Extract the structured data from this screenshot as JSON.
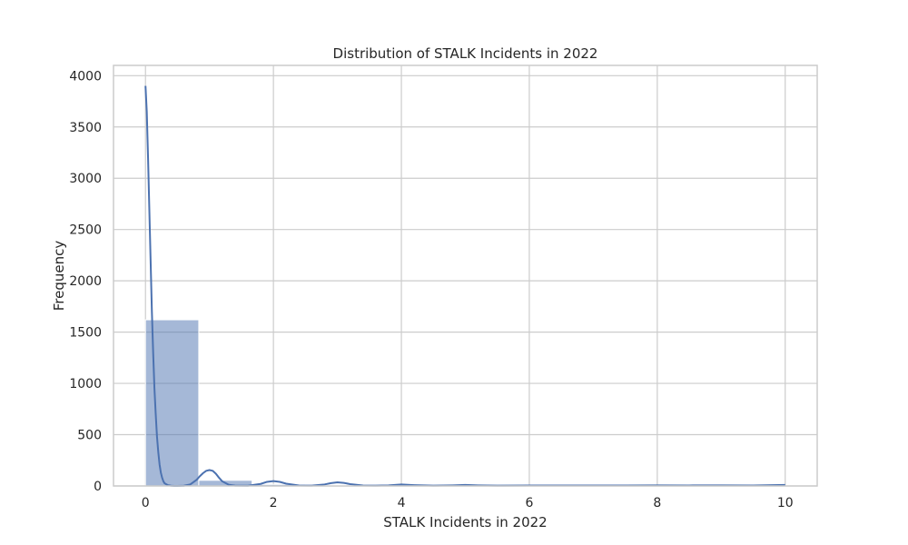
{
  "chart_data": {
    "type": "bar",
    "title": "Distribution of STALK Incidents in 2022",
    "xlabel": "STALK Incidents in 2022",
    "ylabel": "Frequency",
    "xlim": [
      -0.5,
      10.5
    ],
    "ylim": [
      0,
      4100
    ],
    "xticks": [
      0,
      2,
      4,
      6,
      8,
      10
    ],
    "yticks": [
      0,
      500,
      1000,
      1500,
      2000,
      2500,
      3000,
      3500,
      4000
    ],
    "grid": true,
    "bins": [
      {
        "start": 0.0,
        "end": 0.833,
        "value": 1620
      },
      {
        "start": 0.833,
        "end": 1.667,
        "value": 55
      },
      {
        "start": 1.667,
        "end": 2.5,
        "value": 15
      },
      {
        "start": 2.5,
        "end": 3.333,
        "value": 8
      },
      {
        "start": 3.333,
        "end": 4.167,
        "value": 5
      },
      {
        "start": 4.167,
        "end": 5.0,
        "value": 3
      },
      {
        "start": 5.0,
        "end": 5.833,
        "value": 3
      },
      {
        "start": 5.833,
        "end": 6.667,
        "value": 2
      },
      {
        "start": 6.667,
        "end": 7.5,
        "value": 1
      },
      {
        "start": 7.5,
        "end": 8.333,
        "value": 2
      },
      {
        "start": 8.333,
        "end": 9.167,
        "value": 2
      },
      {
        "start": 9.167,
        "end": 10.0,
        "value": 2
      }
    ],
    "kde": {
      "x": [
        0,
        0.02,
        0.04,
        0.06,
        0.08,
        0.1,
        0.12,
        0.14,
        0.16,
        0.18,
        0.2,
        0.22,
        0.24,
        0.26,
        0.28,
        0.3,
        0.35,
        0.4,
        0.45,
        0.5,
        0.6,
        0.7,
        0.8,
        0.85,
        0.9,
        0.95,
        1.0,
        1.05,
        1.1,
        1.15,
        1.2,
        1.3,
        1.4,
        1.6,
        1.8,
        1.9,
        2.0,
        2.1,
        2.2,
        2.4,
        2.6,
        2.8,
        2.9,
        3.0,
        3.1,
        3.2,
        3.4,
        3.6,
        3.8,
        4.0,
        4.2,
        4.5,
        4.8,
        5.0,
        5.2,
        5.5,
        6.0,
        6.5,
        7.0,
        7.5,
        8.0,
        8.5,
        9.0,
        9.5,
        10.0
      ],
      "y": [
        3900,
        3650,
        3200,
        2700,
        2200,
        1700,
        1300,
        950,
        700,
        480,
        330,
        210,
        130,
        80,
        45,
        25,
        8,
        2,
        0,
        0,
        2,
        15,
        60,
        95,
        125,
        148,
        155,
        148,
        120,
        80,
        45,
        12,
        3,
        2,
        20,
        40,
        48,
        40,
        22,
        5,
        3,
        15,
        28,
        35,
        30,
        18,
        5,
        3,
        6,
        14,
        8,
        3,
        6,
        10,
        6,
        3,
        4,
        5,
        4,
        4,
        6,
        5,
        6,
        5,
        10
      ]
    },
    "colors": {
      "bar_fill": "#4c72b0",
      "bar_opacity": "0.5",
      "line": "#4c72b0",
      "grid": "#cccccc",
      "frame": "#cccccc"
    }
  }
}
